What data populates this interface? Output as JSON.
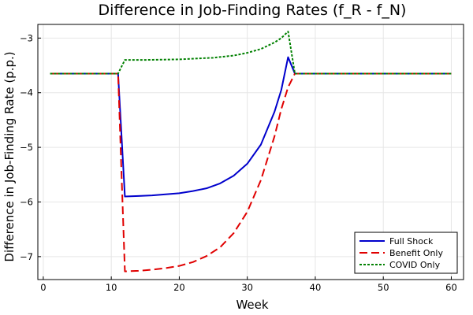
{
  "chart_data": {
    "type": "line",
    "title": "Difference in Job-Finding Rates (f_R - f_N)",
    "xlabel": "Week",
    "ylabel": "Difference in Job-Finding Rate (p.p.)",
    "xlim": [
      -0.8,
      61.8
    ],
    "ylim": [
      -7.42,
      -2.75
    ],
    "xticks": [
      0,
      10,
      20,
      30,
      40,
      50,
      60
    ],
    "yticks": [
      -7,
      -6,
      -5,
      -4,
      -3
    ],
    "xtick_labels": [
      "0",
      "10",
      "20",
      "30",
      "40",
      "50",
      "60"
    ],
    "ytick_labels": [
      "−7",
      "−6",
      "−5",
      "−4",
      "−3"
    ],
    "grid": true,
    "legend_position": "bottom-right",
    "series": [
      {
        "name": "Full Shock",
        "color": "#0000cc",
        "dash": "solid",
        "x": [
          1,
          11,
          12,
          14,
          16,
          18,
          20,
          22,
          24,
          26,
          28,
          30,
          32,
          34,
          35,
          36,
          37,
          60
        ],
        "y": [
          -3.65,
          -3.65,
          -5.9,
          -5.89,
          -5.88,
          -5.86,
          -5.84,
          -5.8,
          -5.75,
          -5.66,
          -5.52,
          -5.3,
          -4.95,
          -4.35,
          -3.95,
          -3.35,
          -3.65,
          -3.65
        ]
      },
      {
        "name": "Benefit Only",
        "color": "#e00000",
        "dash": "long-dash",
        "x": [
          1,
          11,
          12,
          14,
          16,
          18,
          20,
          22,
          24,
          26,
          28,
          30,
          32,
          34,
          35,
          36,
          37,
          60
        ],
        "y": [
          -3.65,
          -3.65,
          -7.27,
          -7.26,
          -7.24,
          -7.21,
          -7.17,
          -7.1,
          -6.99,
          -6.83,
          -6.57,
          -6.18,
          -5.6,
          -4.8,
          -4.3,
          -3.9,
          -3.65,
          -3.65
        ]
      },
      {
        "name": "COVID Only",
        "color": "#008000",
        "dash": "dot",
        "x": [
          1,
          11,
          12,
          15,
          20,
          25,
          28,
          30,
          32,
          34,
          35,
          36,
          37,
          60
        ],
        "y": [
          -3.65,
          -3.65,
          -3.4,
          -3.4,
          -3.39,
          -3.36,
          -3.32,
          -3.27,
          -3.2,
          -3.08,
          -3.0,
          -2.88,
          -3.65,
          -3.65
        ]
      }
    ]
  }
}
